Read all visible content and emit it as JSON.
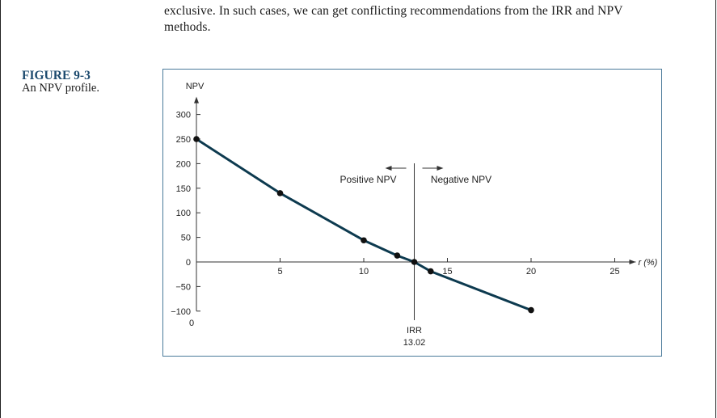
{
  "page": {
    "body_text_line1": "exclusive. In such cases, we can get conflicting recommendations from the IRR and NPV",
    "body_text_line2": "methods.",
    "figure_number": "FIGURE 9-3",
    "figure_caption": "An NPV profile."
  },
  "chart_data": {
    "type": "line",
    "title": "",
    "xlabel": "r (%)",
    "ylabel": "NPV",
    "x_origin_label": "0",
    "xlim": [
      0,
      25
    ],
    "ylim": [
      -100,
      300
    ],
    "x_ticks": [
      5,
      10,
      15,
      20,
      25
    ],
    "y_ticks": [
      300,
      250,
      200,
      150,
      100,
      50,
      0,
      -50,
      -100
    ],
    "series": [
      {
        "name": "NPV profile",
        "x": [
          0,
          5,
          10,
          12,
          13.02,
          14,
          20
        ],
        "y": [
          250,
          140,
          44,
          13,
          0,
          -19,
          -98
        ]
      }
    ],
    "irr": {
      "value": 13.02,
      "label": "IRR",
      "value_label": "13.02"
    },
    "annotations": {
      "left_label": "Positive NPV",
      "right_label": "Negative NPV"
    },
    "colors": {
      "line": "#0d3a4f",
      "marker": "#111111",
      "frame": "#4a7a9a",
      "figure_number": "#1c4a6e"
    }
  }
}
